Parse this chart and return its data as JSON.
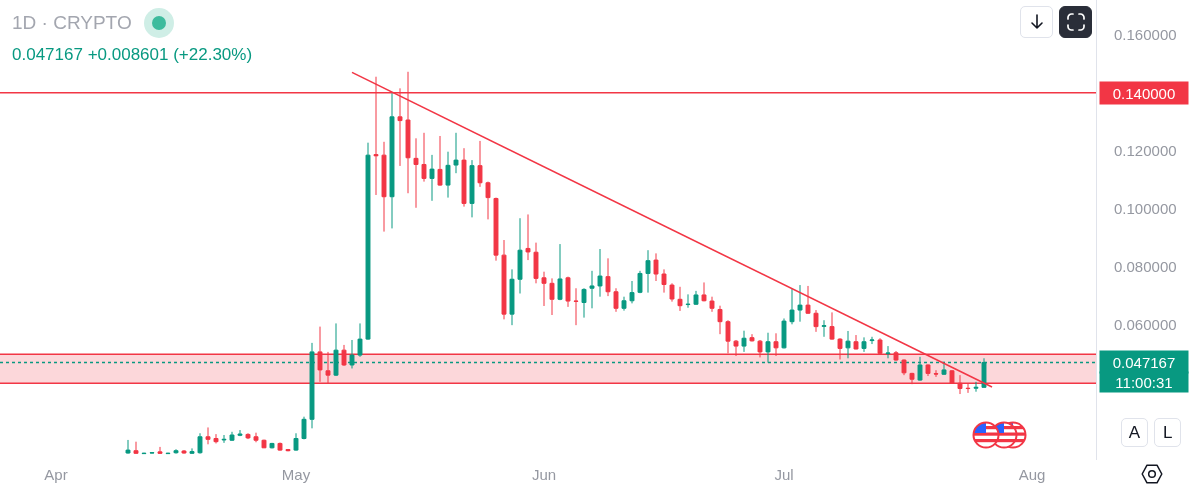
{
  "chart_data": {
    "type": "candlestick",
    "title": "1D · CRYPTO",
    "subtitle": "0.047167 +0.008601 (+22.30%)",
    "x": [
      "--04-10",
      "--04-11",
      "--04-12",
      "--04-13",
      "--04-14",
      "--04-15",
      "--04-16",
      "--04-17",
      "--04-18",
      "--04-19",
      "--04-20",
      "--04-21",
      "--04-22",
      "--04-23",
      "--04-24",
      "--04-25",
      "--04-26",
      "--04-27",
      "--04-28",
      "--04-29",
      "--04-30",
      "--05-01",
      "--05-02",
      "--05-03",
      "--05-04",
      "--05-05",
      "--05-06",
      "--05-07",
      "--05-08",
      "--05-09",
      "--05-10",
      "--05-11",
      "--05-12",
      "--05-13",
      "--05-14",
      "--05-15",
      "--05-16",
      "--05-17",
      "--05-18",
      "--05-19",
      "--05-20",
      "--05-21",
      "--05-22",
      "--05-23",
      "--05-24",
      "--05-25",
      "--05-26",
      "--05-27",
      "--05-28",
      "--05-29",
      "--05-30",
      "--05-31",
      "--06-01",
      "--06-02",
      "--06-03",
      "--06-04",
      "--06-05",
      "--06-06",
      "--06-07",
      "--06-08",
      "--06-09",
      "--06-10",
      "--06-11",
      "--06-12",
      "--06-13",
      "--06-14",
      "--06-15",
      "--06-16",
      "--06-17",
      "--06-18",
      "--06-19",
      "--06-20",
      "--06-21",
      "--06-22",
      "--06-23",
      "--06-24",
      "--06-25",
      "--06-26",
      "--06-27",
      "--06-28",
      "--06-29",
      "--06-30",
      "--07-01",
      "--07-02",
      "--07-03",
      "--07-04",
      "--07-05",
      "--07-06",
      "--07-07",
      "--07-08",
      "--07-09",
      "--07-10",
      "--07-11",
      "--07-12",
      "--07-13",
      "--07-14",
      "--07-15",
      "--07-16",
      "--07-17",
      "--07-18",
      "--07-19",
      "--07-20",
      "--07-21",
      "--07-22",
      "--07-23",
      "--07-24",
      "--07-25",
      "--07-26"
    ],
    "ohlc": [
      [
        0.016,
        0.0205,
        0.0158,
        0.017
      ],
      [
        0.0168,
        0.0199,
        0.0157,
        0.0159
      ],
      [
        0.0158,
        0.0161,
        0.0157,
        0.0159
      ],
      [
        0.016,
        0.0163,
        0.0159,
        0.0161
      ],
      [
        0.0164,
        0.0181,
        0.0157,
        0.0159
      ],
      [
        0.0158,
        0.0161,
        0.0157,
        0.0159
      ],
      [
        0.0161,
        0.0173,
        0.0158,
        0.0168
      ],
      [
        0.0167,
        0.017,
        0.0158,
        0.016
      ],
      [
        0.0159,
        0.0176,
        0.0157,
        0.0165
      ],
      [
        0.0161,
        0.0228,
        0.0158,
        0.0216
      ],
      [
        0.0216,
        0.0248,
        0.019,
        0.0207
      ],
      [
        0.021,
        0.0225,
        0.0193,
        0.0199
      ],
      [
        0.0205,
        0.0222,
        0.0195,
        0.0207
      ],
      [
        0.0204,
        0.0233,
        0.0202,
        0.0222
      ],
      [
        0.0221,
        0.0239,
        0.0218,
        0.0225
      ],
      [
        0.0224,
        0.0228,
        0.0208,
        0.0212
      ],
      [
        0.0216,
        0.023,
        0.0197,
        0.0204
      ],
      [
        0.0204,
        0.0206,
        0.0177,
        0.0178
      ],
      [
        0.0178,
        0.0195,
        0.0176,
        0.0193
      ],
      [
        0.0193,
        0.0196,
        0.0168,
        0.017
      ],
      [
        0.0172,
        0.0174,
        0.0166,
        0.0168
      ],
      [
        0.017,
        0.0228,
        0.0168,
        0.021
      ],
      [
        0.021,
        0.0285,
        0.0207,
        0.0276
      ],
      [
        0.0276,
        0.0539,
        0.0245,
        0.0508
      ],
      [
        0.0508,
        0.0595,
        0.0405,
        0.0446
      ],
      [
        0.0443,
        0.0508,
        0.04,
        0.0428
      ],
      [
        0.0428,
        0.0606,
        0.0425,
        0.0514
      ],
      [
        0.0514,
        0.0532,
        0.046,
        0.0463
      ],
      [
        0.0463,
        0.0549,
        0.0451,
        0.0497
      ],
      [
        0.0497,
        0.0606,
        0.0491,
        0.0552
      ],
      [
        0.0552,
        0.1228,
        0.055,
        0.1185
      ],
      [
        0.1187,
        0.1455,
        0.1048,
        0.1183
      ],
      [
        0.1185,
        0.1231,
        0.0922,
        0.1042
      ],
      [
        0.1042,
        0.1398,
        0.0933,
        0.1317
      ],
      [
        0.1317,
        0.1415,
        0.1148,
        0.1304
      ],
      [
        0.1306,
        0.1472,
        0.1054,
        0.1176
      ],
      [
        0.1174,
        0.1243,
        0.1004,
        0.1153
      ],
      [
        0.1153,
        0.1262,
        0.1094,
        0.1105
      ],
      [
        0.1105,
        0.1186,
        0.1028,
        0.1137
      ],
      [
        0.1136,
        0.1251,
        0.108,
        0.1082
      ],
      [
        0.1082,
        0.1197,
        0.1039,
        0.115
      ],
      [
        0.1151,
        0.1262,
        0.1123,
        0.1168
      ],
      [
        0.1168,
        0.1209,
        0.1008,
        0.1019
      ],
      [
        0.1019,
        0.1168,
        0.0971,
        0.1149
      ],
      [
        0.1149,
        0.1234,
        0.1076,
        0.109
      ],
      [
        0.109,
        0.1094,
        0.0964,
        0.1039
      ],
      [
        0.1036,
        0.1039,
        0.0822,
        0.0841
      ],
      [
        0.0841,
        0.0893,
        0.062,
        0.0638
      ],
      [
        0.0638,
        0.0792,
        0.06,
        0.0758
      ],
      [
        0.0758,
        0.0968,
        0.0709,
        0.0858
      ],
      [
        0.0864,
        0.0981,
        0.0824,
        0.0852
      ],
      [
        0.0851,
        0.0884,
        0.0744,
        0.0761
      ],
      [
        0.0763,
        0.0784,
        0.0666,
        0.0744
      ],
      [
        0.0744,
        0.0761,
        0.0635,
        0.0689
      ],
      [
        0.0689,
        0.0879,
        0.0686,
        0.0759
      ],
      [
        0.0763,
        0.0767,
        0.0663,
        0.0683
      ],
      [
        0.0683,
        0.0727,
        0.06,
        0.0682
      ],
      [
        0.0678,
        0.0727,
        0.0626,
        0.0723
      ],
      [
        0.0727,
        0.0787,
        0.0658,
        0.0735
      ],
      [
        0.0735,
        0.0862,
        0.0698,
        0.0769
      ],
      [
        0.0767,
        0.083,
        0.07,
        0.0715
      ],
      [
        0.0715,
        0.0727,
        0.0646,
        0.0658
      ],
      [
        0.0658,
        0.0698,
        0.065,
        0.0684
      ],
      [
        0.0684,
        0.0752,
        0.0675,
        0.0712
      ],
      [
        0.0713,
        0.0787,
        0.071,
        0.0778
      ],
      [
        0.0778,
        0.0858,
        0.0712,
        0.0822
      ],
      [
        0.0824,
        0.0847,
        0.0752,
        0.0776
      ],
      [
        0.0776,
        0.0792,
        0.0712,
        0.074
      ],
      [
        0.0738,
        0.0744,
        0.0681,
        0.069
      ],
      [
        0.0689,
        0.0732,
        0.0649,
        0.0667
      ],
      [
        0.0671,
        0.0706,
        0.066,
        0.0672
      ],
      [
        0.0672,
        0.0718,
        0.067,
        0.0704
      ],
      [
        0.0704,
        0.0747,
        0.0682,
        0.0684
      ],
      [
        0.0683,
        0.0698,
        0.0646,
        0.0658
      ],
      [
        0.0654,
        0.0667,
        0.0569,
        0.0612
      ],
      [
        0.0612,
        0.0617,
        0.0503,
        0.0545
      ],
      [
        0.0545,
        0.0549,
        0.0494,
        0.0528
      ],
      [
        0.0528,
        0.0581,
        0.0508,
        0.0555
      ],
      [
        0.0557,
        0.0569,
        0.0544,
        0.0546
      ],
      [
        0.0545,
        0.0549,
        0.0489,
        0.0508
      ],
      [
        0.0508,
        0.0574,
        0.0471,
        0.0543
      ],
      [
        0.0543,
        0.0572,
        0.0494,
        0.0522
      ],
      [
        0.0522,
        0.0623,
        0.052,
        0.0614
      ],
      [
        0.0612,
        0.0727,
        0.0603,
        0.0652
      ],
      [
        0.0652,
        0.0738,
        0.0612,
        0.0669
      ],
      [
        0.0669,
        0.0735,
        0.0639,
        0.0641
      ],
      [
        0.0641,
        0.0652,
        0.0577,
        0.0595
      ],
      [
        0.0596,
        0.0617,
        0.056,
        0.0598
      ],
      [
        0.0595,
        0.0644,
        0.055,
        0.0552
      ],
      [
        0.0552,
        0.0555,
        0.0482,
        0.052
      ],
      [
        0.0522,
        0.058,
        0.0486,
        0.0545
      ],
      [
        0.0543,
        0.0566,
        0.0517,
        0.0518
      ],
      [
        0.052,
        0.0558,
        0.0508,
        0.0543
      ],
      [
        0.0547,
        0.056,
        0.0535,
        0.0549
      ],
      [
        0.0549,
        0.0555,
        0.0501,
        0.0503
      ],
      [
        0.0502,
        0.0528,
        0.0486,
        0.0504
      ],
      [
        0.0505,
        0.0511,
        0.0478,
        0.048
      ],
      [
        0.048,
        0.0482,
        0.0428,
        0.0436
      ],
      [
        0.0434,
        0.0436,
        0.0397,
        0.0414
      ],
      [
        0.0411,
        0.0491,
        0.0409,
        0.0463
      ],
      [
        0.0463,
        0.0465,
        0.0425,
        0.0434
      ],
      [
        0.0433,
        0.0445,
        0.0422,
        0.0432
      ],
      [
        0.0431,
        0.0474,
        0.0429,
        0.0446
      ],
      [
        0.0443,
        0.0445,
        0.0398,
        0.04
      ],
      [
        0.04,
        0.0428,
        0.0363,
        0.0382
      ],
      [
        0.0383,
        0.04,
        0.0367,
        0.0382
      ],
      [
        0.0383,
        0.0405,
        0.0371,
        0.0386
      ],
      [
        0.0386,
        0.0486,
        0.0385,
        0.047167
      ]
    ],
    "colors": [
      "#089981",
      "#f23645",
      "#089981",
      "#089981",
      "#f23645",
      "#089981",
      "#089981",
      "#f23645",
      "#089981",
      "#089981",
      "#f23645",
      "#f23645",
      "#089981",
      "#089981",
      "#089981",
      "#f23645",
      "#f23645",
      "#f23645",
      "#089981",
      "#f23645",
      "#f23645",
      "#089981",
      "#089981",
      "#089981",
      "#f23645",
      "#f23645",
      "#089981",
      "#f23645",
      "#089981",
      "#089981",
      "#089981",
      "#f23645",
      "#f23645",
      "#089981",
      "#f23645",
      "#f23645",
      "#f23645",
      "#f23645",
      "#089981",
      "#f23645",
      "#089981",
      "#089981",
      "#f23645",
      "#089981",
      "#f23645",
      "#f23645",
      "#f23645",
      "#f23645",
      "#089981",
      "#089981",
      "#f23645",
      "#f23645",
      "#f23645",
      "#f23645",
      "#089981",
      "#f23645",
      "#f23645",
      "#089981",
      "#089981",
      "#089981",
      "#f23645",
      "#f23645",
      "#089981",
      "#089981",
      "#089981",
      "#089981",
      "#f23645",
      "#f23645",
      "#f23645",
      "#f23645",
      "#089981",
      "#089981",
      "#f23645",
      "#f23645",
      "#f23645",
      "#f23645",
      "#f23645",
      "#089981",
      "#f23645",
      "#f23645",
      "#089981",
      "#f23645",
      "#089981",
      "#089981",
      "#089981",
      "#f23645",
      "#f23645",
      "#089981",
      "#f23645",
      "#f23645",
      "#089981",
      "#f23645",
      "#089981",
      "#089981",
      "#f23645",
      "#089981",
      "#f23645",
      "#f23645",
      "#f23645",
      "#089981",
      "#f23645",
      "#f23645",
      "#089981",
      "#f23645",
      "#f23645",
      "#f23645",
      "#089981",
      "#089981"
    ],
    "series": [
      {
        "type": "line",
        "x": [
          "--05-08",
          "--07-27"
        ],
        "values": [
          0.147,
          0.0387
        ],
        "color": "#f23645"
      }
    ],
    "xlim": [
      "--03-25",
      "--08-09"
    ],
    "xticks": [
      {
        "value": "--04-01",
        "label": "Apr"
      },
      {
        "value": "--05-01",
        "label": "May"
      },
      {
        "value": "--06-01",
        "label": "Jun"
      },
      {
        "value": "--07-01",
        "label": "Jul"
      },
      {
        "value": "--08-01",
        "label": "Aug"
      }
    ],
    "ylim": [
      0.0136,
      0.1719
    ],
    "yticks": [
      {
        "value": 0.06,
        "label": "0.060000"
      },
      {
        "value": 0.08,
        "label": "0.080000"
      },
      {
        "value": 0.1,
        "label": "0.100000"
      },
      {
        "value": 0.12,
        "label": "0.120000"
      },
      {
        "value": 0.16,
        "label": "0.160000"
      }
    ],
    "ref_lines": [
      {
        "axis": "y",
        "value": 0.14,
        "label": "0.140000",
        "color": "#f23645"
      },
      {
        "axis": "y",
        "value": 0.05,
        "color": "#f23645"
      },
      {
        "axis": "y",
        "value": 0.04,
        "color": "#f23645"
      },
      {
        "axis": "y",
        "value": 0.047167,
        "label": "0.047167",
        "color": "#089981",
        "line_style": "dotted"
      }
    ],
    "bands": [
      {
        "axis": "y",
        "from": 0.04,
        "to": 0.05,
        "color": "#f23645"
      }
    ],
    "annotations": [
      "11:00:31",
      "A",
      "L"
    ],
    "grid": false
  }
}
